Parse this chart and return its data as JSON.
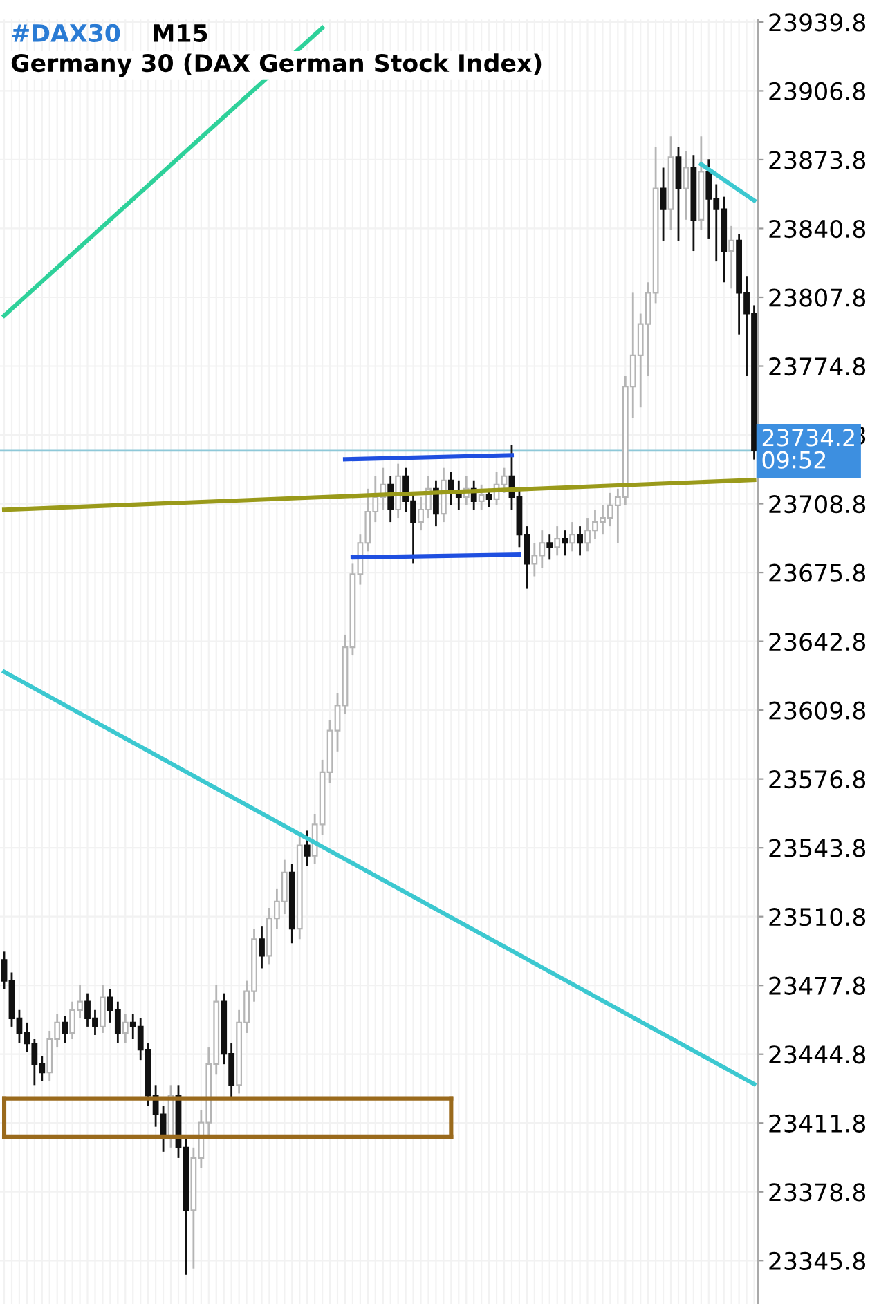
{
  "chart_data": {
    "type": "candlestick",
    "title": "#DAX30",
    "subtitle": "Germany 30 (DAX German Stock Index)",
    "annotations": [
      "M15"
    ],
    "categories": [
      null,
      null,
      null,
      null,
      null,
      null,
      null,
      null,
      null,
      null,
      null,
      null,
      null,
      null,
      null,
      null,
      null,
      null,
      null,
      null,
      null,
      null,
      null,
      null,
      null,
      null,
      null,
      null,
      null,
      null,
      null,
      null,
      null,
      null,
      null,
      null,
      null,
      null,
      null,
      null,
      null,
      null,
      null,
      null,
      null,
      null,
      null,
      null,
      null,
      null,
      null,
      null,
      null,
      null,
      null,
      null,
      null,
      null,
      null,
      null,
      null,
      null,
      null,
      null,
      null,
      null,
      null,
      null,
      null,
      null,
      null,
      null,
      null,
      null,
      null,
      null,
      null,
      null,
      null,
      null,
      null,
      null,
      null,
      null,
      null,
      null,
      null,
      null,
      null,
      null,
      null,
      null,
      null,
      null,
      null,
      null,
      null,
      null,
      null,
      null
    ],
    "ohlc": [
      [
        23490,
        23494,
        23476,
        23480
      ],
      [
        23480,
        23484,
        23458,
        23462
      ],
      [
        23462,
        23466,
        23450,
        23455
      ],
      [
        23455,
        23460,
        23446,
        23450
      ],
      [
        23450,
        23452,
        23430,
        23440
      ],
      [
        23440,
        23444,
        23432,
        23436
      ],
      [
        23436,
        23456,
        23432,
        23452
      ],
      [
        23452,
        23464,
        23448,
        23460
      ],
      [
        23460,
        23463,
        23450,
        23455
      ],
      [
        23455,
        23470,
        23452,
        23466
      ],
      [
        23466,
        23478,
        23462,
        23470
      ],
      [
        23470,
        23474,
        23458,
        23462
      ],
      [
        23462,
        23466,
        23454,
        23458
      ],
      [
        23458,
        23478,
        23455,
        23472
      ],
      [
        23472,
        23476,
        23460,
        23466
      ],
      [
        23466,
        23470,
        23450,
        23455
      ],
      [
        23455,
        23464,
        23450,
        23460
      ],
      [
        23460,
        23464,
        23452,
        23458
      ],
      [
        23458,
        23462,
        23442,
        23447
      ],
      [
        23447,
        23450,
        23420,
        23425
      ],
      [
        23425,
        23430,
        23410,
        23416
      ],
      [
        23416,
        23420,
        23398,
        23405
      ],
      [
        23405,
        23430,
        23400,
        23425
      ],
      [
        23425,
        23430,
        23395,
        23400
      ],
      [
        23400,
        23405,
        23339,
        23370
      ],
      [
        23370,
        23400,
        23342,
        23395
      ],
      [
        23395,
        23418,
        23390,
        23412
      ],
      [
        23412,
        23448,
        23405,
        23440
      ],
      [
        23440,
        23478,
        23435,
        23470
      ],
      [
        23470,
        23474,
        23440,
        23445
      ],
      [
        23445,
        23450,
        23424,
        23430
      ],
      [
        23430,
        23466,
        23426,
        23460
      ],
      [
        23460,
        23480,
        23455,
        23475
      ],
      [
        23475,
        23505,
        23470,
        23500
      ],
      [
        23500,
        23506,
        23486,
        23492
      ],
      [
        23492,
        23515,
        23488,
        23510
      ],
      [
        23510,
        23524,
        23505,
        23518
      ],
      [
        23518,
        23538,
        23512,
        23532
      ],
      [
        23532,
        23536,
        23498,
        23505
      ],
      [
        23505,
        23550,
        23500,
        23545
      ],
      [
        23545,
        23552,
        23535,
        23540
      ],
      [
        23540,
        23560,
        23536,
        23555
      ],
      [
        23555,
        23586,
        23550,
        23580
      ],
      [
        23580,
        23605,
        23575,
        23600
      ],
      [
        23600,
        23618,
        23590,
        23612
      ],
      [
        23612,
        23646,
        23608,
        23640
      ],
      [
        23640,
        23680,
        23636,
        23675
      ],
      [
        23675,
        23694,
        23670,
        23690
      ],
      [
        23690,
        23716,
        23686,
        23705
      ],
      [
        23705,
        23722,
        23700,
        23712
      ],
      [
        23712,
        23726,
        23706,
        23718
      ],
      [
        23718,
        23722,
        23700,
        23706
      ],
      [
        23706,
        23728,
        23702,
        23722
      ],
      [
        23722,
        23726,
        23705,
        23710
      ],
      [
        23710,
        23714,
        23680,
        23700
      ],
      [
        23700,
        23712,
        23696,
        23706
      ],
      [
        23706,
        23722,
        23702,
        23716
      ],
      [
        23716,
        23720,
        23698,
        23704
      ],
      [
        23704,
        23726,
        23700,
        23720
      ],
      [
        23720,
        23724,
        23708,
        23714
      ],
      [
        23714,
        23720,
        23706,
        23712
      ],
      [
        23712,
        23722,
        23708,
        23716
      ],
      [
        23716,
        23720,
        23706,
        23710
      ],
      [
        23710,
        23718,
        23706,
        23713
      ],
      [
        23713,
        23716,
        23707,
        23711
      ],
      [
        23711,
        23724,
        23708,
        23718
      ],
      [
        23718,
        23726,
        23714,
        23722
      ],
      [
        23722,
        23737,
        23706,
        23712
      ],
      [
        23712,
        23716,
        23688,
        23694
      ],
      [
        23694,
        23698,
        23668,
        23680
      ],
      [
        23680,
        23690,
        23674,
        23684
      ],
      [
        23684,
        23696,
        23678,
        23690
      ],
      [
        23690,
        23694,
        23682,
        23688
      ],
      [
        23688,
        23698,
        23684,
        23692
      ],
      [
        23692,
        23696,
        23684,
        23690
      ],
      [
        23690,
        23700,
        23686,
        23694
      ],
      [
        23694,
        23698,
        23684,
        23690
      ],
      [
        23690,
        23702,
        23686,
        23696
      ],
      [
        23696,
        23706,
        23692,
        23700
      ],
      [
        23700,
        23708,
        23694,
        23702
      ],
      [
        23702,
        23714,
        23698,
        23708
      ],
      [
        23708,
        23716,
        23690,
        23712
      ],
      [
        23712,
        23770,
        23708,
        23765
      ],
      [
        23765,
        23810,
        23750,
        23780
      ],
      [
        23780,
        23800,
        23755,
        23795
      ],
      [
        23795,
        23815,
        23770,
        23810
      ],
      [
        23810,
        23880,
        23805,
        23860
      ],
      [
        23860,
        23870,
        23835,
        23850
      ],
      [
        23850,
        23885,
        23840,
        23875
      ],
      [
        23875,
        23880,
        23835,
        23860
      ],
      [
        23860,
        23878,
        23845,
        23870
      ],
      [
        23870,
        23876,
        23830,
        23845
      ],
      [
        23845,
        23885,
        23840,
        23868
      ],
      [
        23868,
        23874,
        23836,
        23855
      ],
      [
        23855,
        23862,
        23825,
        23850
      ],
      [
        23850,
        23856,
        23815,
        23830
      ],
      [
        23830,
        23842,
        23812,
        23835
      ],
      [
        23835,
        23838,
        23790,
        23810
      ],
      [
        23810,
        23818,
        23770,
        23800
      ],
      [
        23800,
        23804,
        23730,
        23734.2
      ]
    ],
    "series": [
      {
        "type": "line",
        "color": "#2ed19a",
        "line_style": "solid",
        "values": [
          23799,
          null,
          null,
          null,
          null,
          null,
          null,
          null,
          null,
          null,
          null,
          null,
          null,
          null,
          null,
          null,
          null,
          null,
          null,
          null,
          null,
          null,
          null,
          null,
          null,
          null,
          null,
          null,
          null,
          null,
          null,
          null,
          null,
          null,
          null,
          null,
          null,
          null,
          null,
          null,
          null,
          null,
          23937,
          null,
          null,
          null,
          null,
          null,
          null,
          null,
          null,
          null,
          null,
          null,
          null,
          null,
          null,
          null,
          null,
          null,
          null,
          null,
          null,
          null,
          null,
          null,
          null,
          null,
          null,
          null,
          null,
          null,
          null,
          null,
          null,
          null,
          null,
          null,
          null,
          null,
          null,
          null,
          null,
          null,
          null,
          null,
          null,
          null,
          null,
          null,
          null,
          null,
          null,
          null,
          null,
          null,
          null,
          null,
          null,
          null
        ]
      },
      {
        "type": "line",
        "color": "#3cc8d0",
        "line_style": "solid",
        "values": [
          null,
          null,
          null,
          null,
          null,
          null,
          null,
          null,
          null,
          null,
          null,
          null,
          null,
          null,
          null,
          null,
          null,
          null,
          null,
          null,
          null,
          null,
          null,
          null,
          null,
          null,
          null,
          null,
          null,
          null,
          null,
          null,
          null,
          null,
          null,
          null,
          null,
          null,
          null,
          null,
          null,
          null,
          null,
          null,
          null,
          null,
          null,
          null,
          null,
          null,
          null,
          null,
          null,
          null,
          null,
          null,
          null,
          null,
          null,
          null,
          null,
          null,
          null,
          null,
          null,
          null,
          null,
          null,
          null,
          null,
          null,
          null,
          null,
          null,
          null,
          null,
          null,
          null,
          null,
          null,
          null,
          null,
          null,
          null,
          null,
          null,
          null,
          null,
          null,
          null,
          null,
          null,
          23871.6,
          null,
          null,
          null,
          null,
          null,
          null,
          23854.2
        ]
      },
      {
        "type": "line",
        "color": "#3cc8d0",
        "line_style": "solid",
        "values": [
          23628.2,
          null,
          null,
          null,
          null,
          null,
          null,
          null,
          null,
          null,
          null,
          null,
          null,
          null,
          null,
          null,
          null,
          null,
          null,
          null,
          null,
          null,
          null,
          null,
          null,
          null,
          null,
          null,
          null,
          null,
          null,
          null,
          null,
          null,
          null,
          null,
          null,
          null,
          null,
          null,
          null,
          null,
          null,
          null,
          null,
          null,
          null,
          null,
          null,
          null,
          null,
          null,
          null,
          null,
          null,
          null,
          null,
          null,
          null,
          null,
          null,
          null,
          null,
          null,
          null,
          null,
          null,
          null,
          null,
          null,
          null,
          null,
          null,
          null,
          null,
          null,
          null,
          null,
          null,
          null,
          null,
          null,
          null,
          null,
          null,
          null,
          null,
          null,
          null,
          null,
          null,
          null,
          null,
          null,
          null,
          null,
          null,
          null,
          null,
          23430.5
        ]
      },
      {
        "type": "line",
        "color": "#9a9a1a",
        "line_style": "solid",
        "values": [
          23705.9,
          null,
          null,
          null,
          null,
          null,
          null,
          null,
          null,
          null,
          null,
          null,
          null,
          null,
          null,
          null,
          null,
          null,
          null,
          null,
          null,
          null,
          null,
          null,
          null,
          null,
          null,
          null,
          null,
          null,
          null,
          null,
          null,
          null,
          null,
          null,
          null,
          null,
          null,
          null,
          null,
          null,
          null,
          null,
          null,
          null,
          null,
          null,
          null,
          null,
          null,
          null,
          null,
          null,
          null,
          null,
          null,
          null,
          null,
          null,
          null,
          null,
          null,
          null,
          null,
          null,
          null,
          null,
          null,
          null,
          null,
          null,
          null,
          null,
          null,
          null,
          null,
          null,
          null,
          null,
          null,
          null,
          null,
          null,
          null,
          null,
          null,
          null,
          null,
          null,
          null,
          null,
          null,
          null,
          null,
          null,
          null,
          null,
          null,
          23720.2
        ]
      },
      {
        "type": "line",
        "color": "#1f4fe0",
        "line_style": "solid",
        "values": [
          null,
          null,
          null,
          null,
          null,
          null,
          null,
          null,
          null,
          null,
          null,
          null,
          null,
          null,
          null,
          null,
          null,
          null,
          null,
          null,
          null,
          null,
          null,
          null,
          null,
          null,
          null,
          null,
          null,
          null,
          null,
          null,
          null,
          null,
          null,
          null,
          null,
          null,
          null,
          null,
          null,
          null,
          null,
          null,
          null,
          23730.1,
          null,
          null,
          null,
          null,
          null,
          null,
          null,
          null,
          null,
          null,
          null,
          null,
          null,
          null,
          null,
          null,
          null,
          null,
          null,
          null,
          null,
          23732.1,
          null,
          null,
          null,
          null,
          null,
          null,
          null,
          null,
          null,
          null,
          null,
          null,
          null,
          null,
          null,
          null,
          null,
          null,
          null,
          null,
          null,
          null,
          null,
          null,
          null,
          null,
          null,
          null,
          null,
          null,
          null,
          null
        ]
      },
      {
        "type": "line",
        "color": "#1f4fe0",
        "line_style": "solid",
        "values": [
          null,
          null,
          null,
          null,
          null,
          null,
          null,
          null,
          null,
          null,
          null,
          null,
          null,
          null,
          null,
          null,
          null,
          null,
          null,
          null,
          null,
          null,
          null,
          null,
          null,
          null,
          null,
          null,
          null,
          null,
          null,
          null,
          null,
          null,
          null,
          null,
          null,
          null,
          null,
          null,
          null,
          null,
          null,
          null,
          null,
          null,
          23683.1,
          null,
          null,
          null,
          null,
          null,
          null,
          null,
          null,
          null,
          null,
          null,
          null,
          null,
          null,
          null,
          null,
          null,
          null,
          null,
          null,
          null,
          23684.4,
          null,
          null,
          null,
          null,
          null,
          null,
          null,
          null,
          null,
          null,
          null,
          null,
          null,
          null,
          null,
          null,
          null,
          null,
          null,
          null,
          null,
          null,
          null,
          null,
          null,
          null,
          null,
          null,
          null,
          null,
          null
        ]
      },
      {
        "type": "line",
        "color": "#9a6a1c",
        "line_style": "solid",
        "values": [
          23423.6,
          null,
          null,
          null,
          null,
          null,
          null,
          null,
          null,
          null,
          null,
          null,
          null,
          null,
          null,
          null,
          null,
          null,
          null,
          null,
          null,
          null,
          null,
          null,
          null,
          null,
          null,
          null,
          null,
          null,
          null,
          null,
          null,
          null,
          null,
          null,
          null,
          null,
          null,
          null,
          null,
          null,
          null,
          null,
          null,
          null,
          null,
          null,
          null,
          null,
          null,
          null,
          null,
          null,
          null,
          null,
          null,
          null,
          null,
          23423.6,
          null,
          null,
          null,
          null,
          null,
          null,
          null,
          null,
          null,
          null,
          null,
          null,
          null,
          null,
          null,
          null,
          null,
          null,
          null,
          null,
          null,
          null,
          null,
          null,
          null,
          null,
          null,
          null,
          null,
          null,
          null,
          null,
          null,
          null,
          null,
          null,
          null,
          null,
          null,
          null
        ]
      },
      {
        "type": "line",
        "color": "#9a6a1c",
        "line_style": "solid",
        "values": [
          23405.3,
          null,
          null,
          null,
          null,
          null,
          null,
          null,
          null,
          null,
          null,
          null,
          null,
          null,
          null,
          null,
          null,
          null,
          null,
          null,
          null,
          null,
          null,
          null,
          null,
          null,
          null,
          null,
          null,
          null,
          null,
          null,
          null,
          null,
          null,
          null,
          null,
          null,
          null,
          null,
          null,
          null,
          null,
          null,
          null,
          null,
          null,
          null,
          null,
          null,
          null,
          null,
          null,
          null,
          null,
          null,
          null,
          null,
          null,
          23405.3,
          null,
          null,
          null,
          null,
          null,
          null,
          null,
          null,
          null,
          null,
          null,
          null,
          null,
          null,
          null,
          null,
          null,
          null,
          null,
          null,
          null,
          null,
          null,
          null,
          null,
          null,
          null,
          null,
          null,
          null,
          null,
          null,
          null,
          null,
          null,
          null,
          null,
          null,
          null,
          null
        ]
      }
    ],
    "ref_lines": [
      {
        "axis": "y",
        "value": 23734.2,
        "label": "23734.2\n09:52",
        "color": "#8ec8d8"
      }
    ],
    "ylim": [
      23325,
      23941
    ],
    "yticks": [
      23345.8,
      23378.8,
      23411.8,
      23444.8,
      23477.8,
      23510.8,
      23543.8,
      23576.8,
      23609.8,
      23642.8,
      23675.8,
      23708.8,
      23741.8,
      23774.8,
      23807.8,
      23840.8,
      23873.8,
      23906.8,
      23939.8
    ],
    "tick_labels": "y",
    "grid": true,
    "legend": false,
    "marker": "none"
  }
}
